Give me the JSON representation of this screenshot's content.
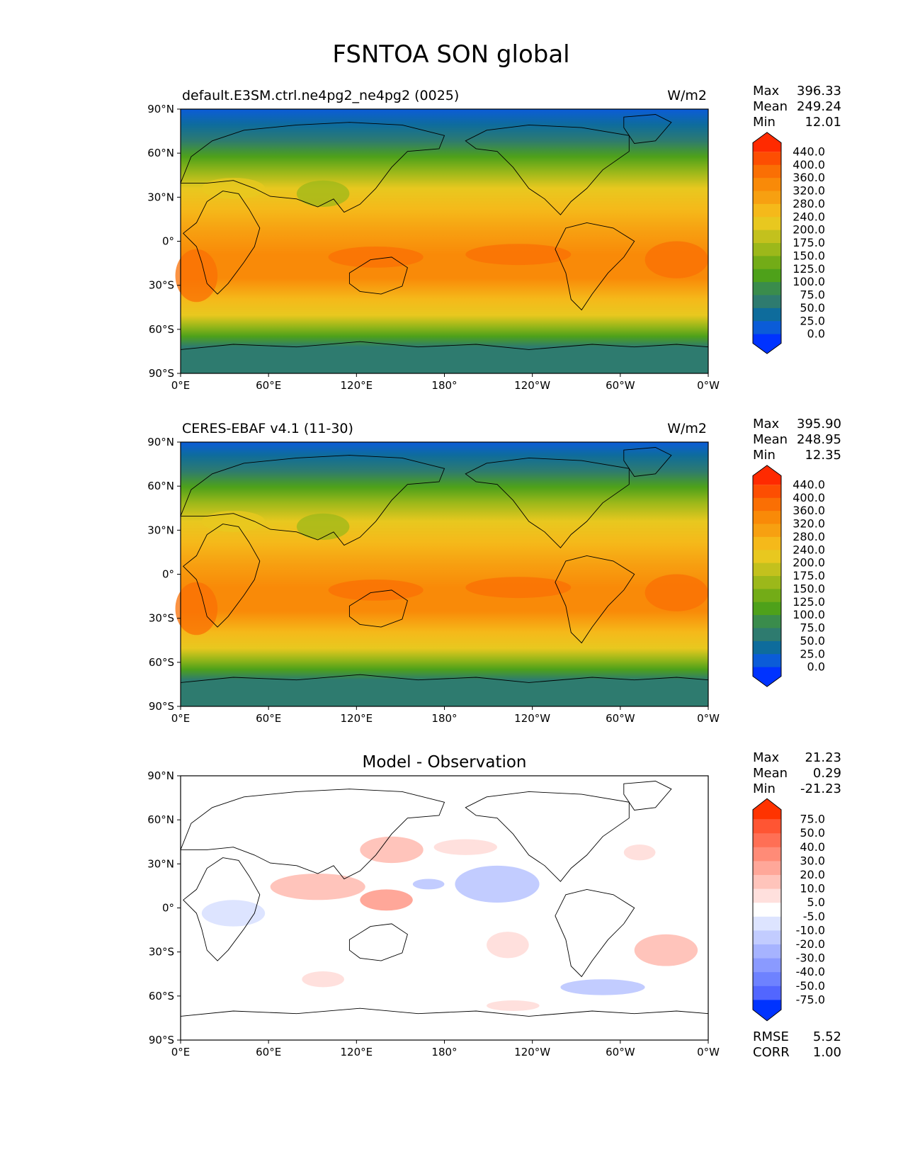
{
  "page_title": "FSNTOA SON global",
  "chart_data": [
    {
      "type": "heatmap",
      "panel": "model",
      "title_left": "default.E3SM.ctrl.ne4pg2_ne4pg2 (0025)",
      "title_right": "W/m2",
      "xticks": [
        "0°E",
        "60°E",
        "120°E",
        "180°",
        "120°W",
        "60°W",
        "0°W"
      ],
      "yticks": [
        "90°N",
        "60°N",
        "30°N",
        "0°",
        "30°S",
        "60°S",
        "90°S"
      ],
      "stats": [
        {
          "label": "Max",
          "value": "396.33"
        },
        {
          "label": "Mean",
          "value": "249.24"
        },
        {
          "label": "Min",
          "value": "12.01"
        }
      ],
      "colorbar": {
        "levels": [
          "440.0",
          "400.0",
          "360.0",
          "320.0",
          "280.0",
          "240.0",
          "200.0",
          "175.0",
          "150.0",
          "125.0",
          "100.0",
          "75.0",
          "50.0",
          "25.0",
          "0.0"
        ],
        "colors": [
          "#ff2a00",
          "#fd4e02",
          "#fa6f04",
          "#f98a08",
          "#f7a011",
          "#f5b91a",
          "#e8c81f",
          "#c3c11d",
          "#9cb81a",
          "#73ac17",
          "#4ea11a",
          "#3a8c4c",
          "#2e7b6f",
          "#0e6c9c",
          "#0b5cd8",
          "#0033ff"
        ]
      }
    },
    {
      "type": "heatmap",
      "panel": "observation",
      "title_left": "CERES-EBAF v4.1 (11-30)",
      "title_right": "W/m2",
      "xticks": [
        "0°E",
        "60°E",
        "120°E",
        "180°",
        "120°W",
        "60°W",
        "0°W"
      ],
      "yticks": [
        "90°N",
        "60°N",
        "30°N",
        "0°",
        "30°S",
        "60°S",
        "90°S"
      ],
      "stats": [
        {
          "label": "Max",
          "value": "395.90"
        },
        {
          "label": "Mean",
          "value": "248.95"
        },
        {
          "label": "Min",
          "value": "12.35"
        }
      ],
      "colorbar": {
        "levels": [
          "440.0",
          "400.0",
          "360.0",
          "320.0",
          "280.0",
          "240.0",
          "200.0",
          "175.0",
          "150.0",
          "125.0",
          "100.0",
          "75.0",
          "50.0",
          "25.0",
          "0.0"
        ],
        "colors": [
          "#ff2a00",
          "#fd4e02",
          "#fa6f04",
          "#f98a08",
          "#f7a011",
          "#f5b91a",
          "#e8c81f",
          "#c3c11d",
          "#9cb81a",
          "#73ac17",
          "#4ea11a",
          "#3a8c4c",
          "#2e7b6f",
          "#0e6c9c",
          "#0b5cd8",
          "#0033ff"
        ]
      }
    },
    {
      "type": "heatmap",
      "panel": "difference",
      "title_center": "Model - Observation",
      "xticks": [
        "0°E",
        "60°E",
        "120°E",
        "180°",
        "120°W",
        "60°W",
        "0°W"
      ],
      "yticks": [
        "90°N",
        "60°N",
        "30°N",
        "0°",
        "30°S",
        "60°S",
        "90°S"
      ],
      "stats": [
        {
          "label": "Max",
          "value": "21.23"
        },
        {
          "label": "Mean",
          "value": "0.29"
        },
        {
          "label": "Min",
          "value": "-21.23"
        }
      ],
      "metrics": [
        {
          "label": "RMSE",
          "value": "5.52"
        },
        {
          "label": "CORR",
          "value": "1.00"
        }
      ],
      "colorbar": {
        "levels": [
          "75.0",
          "50.0",
          "40.0",
          "30.0",
          "20.0",
          "10.0",
          "5.0",
          "-5.0",
          "-10.0",
          "-20.0",
          "-30.0",
          "-40.0",
          "-50.0",
          "-75.0"
        ],
        "colors": [
          "#ff3300",
          "#ff5533",
          "#ff6f55",
          "#ff8b77",
          "#ffa799",
          "#ffc4bb",
          "#ffe0dd",
          "#ffffff",
          "#dde4ff",
          "#c2ccff",
          "#a6b3ff",
          "#8a9aff",
          "#6e82ff",
          "#5266ff",
          "#0033ff"
        ]
      }
    }
  ]
}
